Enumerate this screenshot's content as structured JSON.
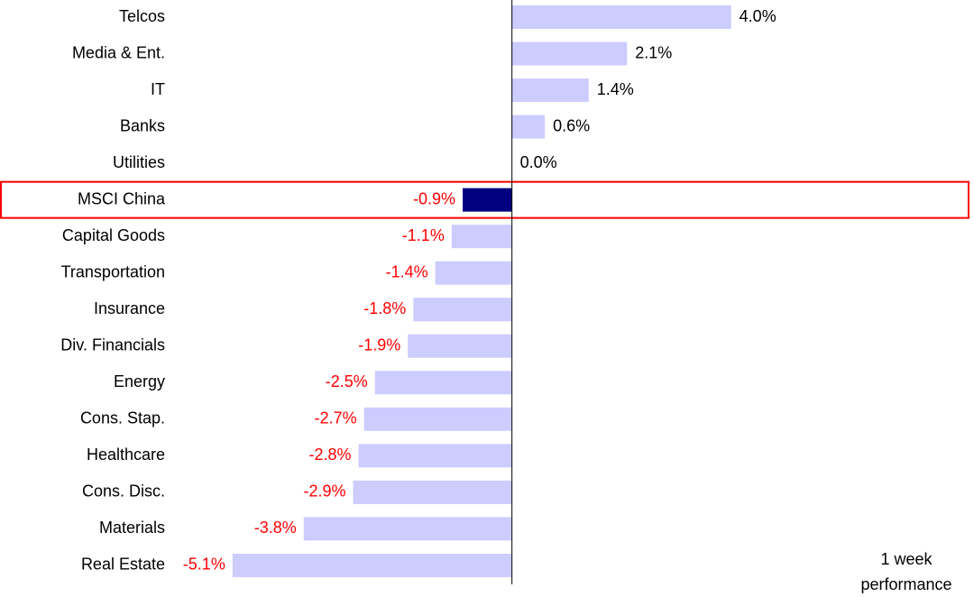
{
  "chart_data": {
    "type": "hbar",
    "categories": [
      "Telcos",
      "Media & Ent.",
      "IT",
      "Banks",
      "Utilities",
      "MSCI China",
      "Capital Goods",
      "Transportation",
      "Insurance",
      "Div. Financials",
      "Energy",
      "Cons. Stap.",
      "Healthcare",
      "Cons. Disc.",
      "Materials",
      "Real Estate"
    ],
    "values": [
      4.0,
      2.1,
      1.4,
      0.6,
      0.0,
      -0.9,
      -1.1,
      -1.4,
      -1.8,
      -1.9,
      -2.5,
      -2.7,
      -2.8,
      -2.9,
      -3.8,
      -5.1
    ],
    "value_labels": [
      "4.0%",
      "2.1%",
      "1.4%",
      "0.6%",
      "0.0%",
      "-0.9%",
      "-1.1%",
      "-1.4%",
      "-1.8%",
      "-1.9%",
      "-2.5%",
      "-2.7%",
      "-2.8%",
      "-2.9%",
      "-3.8%",
      "-5.1%"
    ],
    "color": "#ccccff",
    "highlight": "MSCI China",
    "highlight_color": "#000080",
    "highlight_box_color": "#ff0000",
    "label_color": "#000000",
    "negative_label_color": "#ff0000",
    "xlim": [
      -6.2,
      8.4
    ],
    "annotation": "1 week performance"
  }
}
